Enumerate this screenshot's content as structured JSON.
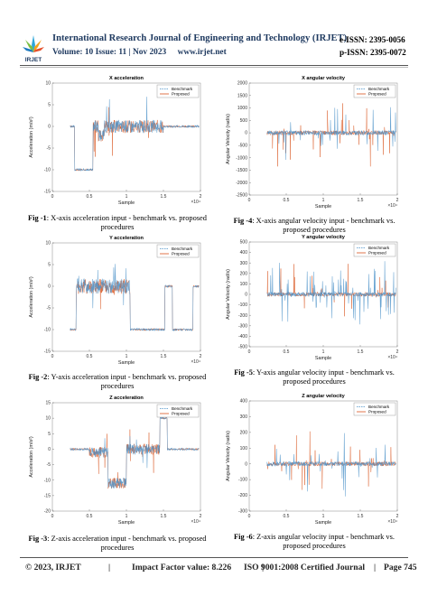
{
  "header": {
    "logo_text": "IRJET",
    "journal_title": "International Research Journal of Engineering and Technology (IRJET)",
    "volume": "Volume: 10 Issue: 11 | Nov 2023",
    "website": "www.irjet.net",
    "eissn": "e-ISSN: 2395-0056",
    "pissn": "p-ISSN: 2395-0072",
    "brand_color": "#1f3a60"
  },
  "figures": [
    {
      "id": "fig1",
      "label": "Fig -1",
      "caption_line1": ": X-axis acceleration input - benchmark vs. proposed",
      "caption_line2": "procedures"
    },
    {
      "id": "fig2",
      "label": "Fig -2",
      "caption_line1": ": Y-axis acceleration input - benchmark vs. proposed",
      "caption_line2": "procedures"
    },
    {
      "id": "fig3",
      "label": "Fig -3",
      "caption_line1": ": Z-axis acceleration input - benchmark vs. proposed",
      "caption_line2": "procedures"
    },
    {
      "id": "fig4",
      "label": "Fig -4",
      "caption_line1": ": X-axis angular velocity input - benchmark vs.",
      "caption_line2": "proposed procedures"
    },
    {
      "id": "fig5",
      "label": "Fig -5",
      "caption_line1": ": Y-axis angular velocity input - benchmark vs.",
      "caption_line2": "proposed procedures"
    },
    {
      "id": "fig6",
      "label": "Fig -6",
      "caption_line1": ": Z-axis angular velocity input - benchmark vs.",
      "caption_line2": "proposed procedures"
    }
  ],
  "chart_data": [
    {
      "type": "line",
      "title": "X acceleration",
      "xlabel": "Sample",
      "ylabel": "Acceleration (m/s²)",
      "xlim": [
        0,
        2
      ],
      "ylim": [
        -15,
        10
      ],
      "x_ticks": [
        "0",
        "0.5",
        "1",
        "1.5",
        "2"
      ],
      "y_ticks": [
        "10",
        "5",
        "0",
        "-5",
        "-10",
        "-15"
      ],
      "x_exponent": "×10⁴",
      "series": [
        {
          "name": "Benchmark",
          "color": "#4a90c8"
        },
        {
          "name": "Proposed",
          "color": "#d9541e"
        }
      ],
      "legend": "top-right"
    },
    {
      "type": "line",
      "title": "Y acceleration",
      "xlabel": "Sample",
      "ylabel": "Acceleration (m/s²)",
      "xlim": [
        0,
        2
      ],
      "ylim": [
        -15,
        10
      ],
      "x_ticks": [
        "0",
        "0.5",
        "1",
        "1.5",
        "2"
      ],
      "y_ticks": [
        "10",
        "5",
        "0",
        "-5",
        "-10",
        "-15"
      ],
      "x_exponent": "×10⁴",
      "series": [
        {
          "name": "Benchmark",
          "color": "#4a90c8"
        },
        {
          "name": "Proposed",
          "color": "#d9541e"
        }
      ],
      "legend": "top-right"
    },
    {
      "type": "line",
      "title": "Z acceleration",
      "xlabel": "Sample",
      "ylabel": "Acceleration (m/s²)",
      "xlim": [
        0,
        2
      ],
      "ylim": [
        -20,
        15
      ],
      "x_ticks": [
        "0",
        "0.5",
        "1",
        "1.5",
        "2"
      ],
      "y_ticks": [
        "15",
        "10",
        "5",
        "0",
        "-5",
        "-10",
        "-15",
        "-20"
      ],
      "x_exponent": "×10⁴",
      "series": [
        {
          "name": "Benchmark",
          "color": "#4a90c8"
        },
        {
          "name": "Proposed",
          "color": "#d9541e"
        }
      ],
      "legend": "top-right"
    },
    {
      "type": "line",
      "title": "X angular velocity",
      "xlabel": "Sample",
      "ylabel": "Angular Velocity (rad/s)",
      "xlim": [
        0,
        2
      ],
      "ylim": [
        -2500,
        2000
      ],
      "x_ticks": [
        "0",
        "0.5",
        "1",
        "1.5",
        "2"
      ],
      "y_ticks": [
        "2000",
        "1500",
        "1000",
        "500",
        "0",
        "-500",
        "-1000",
        "-1500",
        "-2000",
        "-2500"
      ],
      "x_exponent": "×10⁴",
      "series": [
        {
          "name": "Benchmark",
          "color": "#4a90c8"
        },
        {
          "name": "Proposed",
          "color": "#d9541e"
        }
      ],
      "legend": "top-right"
    },
    {
      "type": "line",
      "title": "Y angular velocity",
      "xlabel": "Sample",
      "ylabel": "Angular Velocity (rad/s)",
      "xlim": [
        0,
        2
      ],
      "ylim": [
        -500,
        500
      ],
      "x_ticks": [
        "0",
        "0.5",
        "1",
        "1.5",
        "2"
      ],
      "y_ticks": [
        "500",
        "400",
        "300",
        "200",
        "100",
        "0",
        "-100",
        "-200",
        "-300",
        "-400",
        "-500"
      ],
      "x_exponent": "×10⁴",
      "series": [
        {
          "name": "Benchmark",
          "color": "#4a90c8"
        },
        {
          "name": "Proposed",
          "color": "#d9541e"
        }
      ],
      "legend": "top-right"
    },
    {
      "type": "line",
      "title": "Z angular velocity",
      "xlabel": "Sample",
      "ylabel": "Angular Velocity (rad/s)",
      "xlim": [
        0,
        2
      ],
      "ylim": [
        -300,
        400
      ],
      "x_ticks": [
        "0",
        "0.5",
        "1",
        "1.5",
        "2"
      ],
      "y_ticks": [
        "400",
        "300",
        "200",
        "100",
        "0",
        "-100",
        "-200",
        "-300"
      ],
      "x_exponent": "×10⁴",
      "series": [
        {
          "name": "Benchmark",
          "color": "#4a90c8"
        },
        {
          "name": "Proposed",
          "color": "#d9541e"
        }
      ],
      "legend": "top-right"
    }
  ],
  "footer": {
    "copyright": "© 2023, IRJET",
    "impact": "Impact Factor value: 8.226",
    "iso": "ISO 9001:2008 Certified Journal",
    "page": "Page 745",
    "sep": "|"
  }
}
